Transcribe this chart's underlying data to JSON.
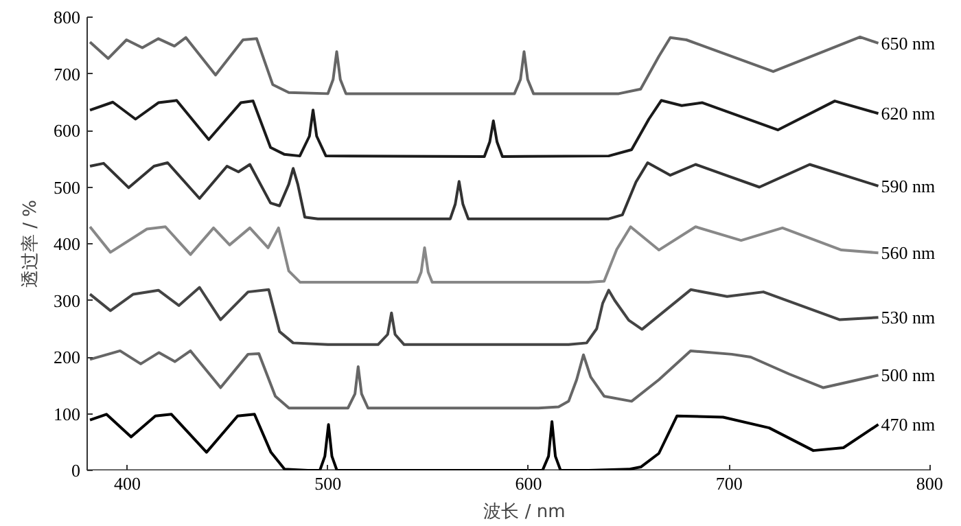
{
  "chart_data": {
    "type": "line",
    "xlabel": "波长 / nm",
    "ylabel": "透过率 / %",
    "xlim": [
      380,
      800
    ],
    "ylim": [
      0,
      800
    ],
    "xticks": [
      400,
      500,
      600,
      700,
      800
    ],
    "yticks": [
      0,
      100,
      200,
      300,
      400,
      500,
      600,
      700,
      800
    ],
    "grid": false,
    "legend": false,
    "line_style": "solid",
    "series": [
      {
        "name": "650 nm",
        "color": "#666666",
        "x": [
          381.4,
          390.5,
          399.6,
          407.5,
          415.5,
          423.5,
          429.2,
          444,
          457.7,
          464.5,
          472.5,
          480.5,
          500,
          502.6,
          504.4,
          506.2,
          509,
          593,
          596,
          597.8,
          599.6,
          602.5,
          645,
          655.9,
          665,
          670.7,
          678.7,
          722,
          765.3,
          774.4
        ],
        "values": [
          756,
          727,
          760,
          746,
          762,
          749,
          764,
          698,
          760,
          762,
          681,
          667,
          665,
          690,
          739,
          690,
          665,
          665,
          690,
          739,
          690,
          665,
          665,
          673,
          731,
          764,
          760,
          704,
          765,
          754
        ]
      },
      {
        "name": "620 nm",
        "color": "#1a1a1a",
        "x": [
          381.4,
          392.8,
          404.1,
          415.5,
          424.6,
          440.6,
          456.6,
          462.7,
          471.4,
          478.2,
          486,
          490.8,
          492.6,
          494.4,
          499,
          578,
          580.7,
          582.5,
          584.3,
          587,
          640,
          651.4,
          660,
          666.2,
          676.4,
          686.7,
          724.3,
          752.7,
          774.4
        ],
        "values": [
          636,
          650,
          620,
          649,
          653,
          584,
          649,
          652,
          570,
          558,
          555,
          590,
          636,
          590,
          555,
          554,
          580,
          617,
          580,
          554,
          555,
          566,
          620,
          653,
          644,
          649,
          601,
          652,
          630
        ]
      },
      {
        "name": "590 nm",
        "color": "#333333",
        "x": [
          381.4,
          388.2,
          400.7,
          413.3,
          420.1,
          436,
          449.7,
          455.4,
          461.1,
          471.4,
          475.9,
          480.5,
          482.7,
          485,
          488.5,
          495,
          561,
          563.5,
          565.4,
          567.3,
          570,
          640,
          646.8,
          653.6,
          659.4,
          670.7,
          683.3,
          715.1,
          740.2,
          774.4
        ],
        "values": [
          537,
          542,
          499,
          537,
          543,
          480,
          537,
          527,
          540,
          472,
          467,
          505,
          533,
          505,
          447,
          444,
          444,
          470,
          510,
          470,
          444,
          444,
          451,
          509,
          543,
          521,
          540,
          500,
          540,
          502
        ]
      },
      {
        "name": "560 nm",
        "color": "#888888",
        "x": [
          381.4,
          391.6,
          409.8,
          419,
          431.5,
          443,
          451,
          461.1,
          470.2,
          475.4,
          480.5,
          486.2,
          500,
          544.5,
          546.5,
          548.2,
          550,
          552,
          630,
          637.7,
          644,
          650.9,
          665,
          683.3,
          706,
          726.6,
          756,
          774.4
        ],
        "values": [
          430,
          385,
          426,
          430,
          381,
          428,
          398,
          428,
          393,
          428,
          352,
          332,
          332,
          332,
          350,
          393,
          350,
          332,
          332,
          334,
          390,
          430,
          389,
          430,
          406,
          428,
          389,
          384
        ]
      },
      {
        "name": "530 nm",
        "color": "#444444",
        "x": [
          381.4,
          391.6,
          403,
          415.5,
          425.7,
          436,
          446.5,
          460.2,
          470.5,
          475.9,
          482.7,
          500,
          525,
          529.8,
          531.7,
          533.5,
          538,
          620,
          629,
          634,
          637,
          640,
          643,
          650,
          656.6,
          680.9,
          699,
          717.1,
          755.2,
          774.4
        ],
        "values": [
          311,
          282,
          311,
          318,
          291,
          323,
          266,
          315,
          319,
          245,
          225,
          222,
          222,
          240,
          278,
          240,
          222,
          222,
          225,
          250,
          295,
          318,
          300,
          265,
          249,
          319,
          307,
          315,
          266,
          270
        ]
      },
      {
        "name": "500 nm",
        "color": "#666666",
        "x": [
          381.4,
          396.4,
          406.7,
          415.8,
          423.7,
          431.5,
          446.5,
          460.2,
          465.6,
          473.8,
          480.6,
          500,
          510,
          513.5,
          515.1,
          516.8,
          520,
          605,
          615,
          620,
          624,
          627.4,
          631,
          637.7,
          651.4,
          665,
          680.8,
          701.3,
          710.8,
          730,
          747,
          774.4
        ],
        "values": [
          196,
          211,
          188,
          208,
          192,
          211,
          146,
          205,
          206,
          131,
          110,
          110,
          110,
          135,
          183,
          135,
          110,
          110,
          112,
          122,
          160,
          204,
          165,
          131,
          122,
          160,
          211,
          205,
          200,
          170,
          146,
          168
        ]
      },
      {
        "name": "470 nm",
        "color": "#000000",
        "x": [
          381.4,
          389.6,
          401.9,
          414,
          422,
          439.5,
          455,
          463.4,
          471.6,
          478.4,
          490,
          496,
          498.5,
          500.3,
          502,
          504.5,
          510,
          607,
          610,
          611.7,
          613.4,
          616,
          630,
          650,
          656,
          665,
          674,
          697,
          720,
          742,
          757,
          774.4
        ],
        "values": [
          89,
          99,
          59,
          96,
          99,
          32,
          96,
          99,
          32,
          2,
          0,
          0,
          25,
          81,
          25,
          0,
          0,
          0,
          25,
          86,
          25,
          0,
          0,
          2,
          6,
          30,
          96,
          94,
          75,
          35,
          40,
          81
        ]
      }
    ]
  }
}
